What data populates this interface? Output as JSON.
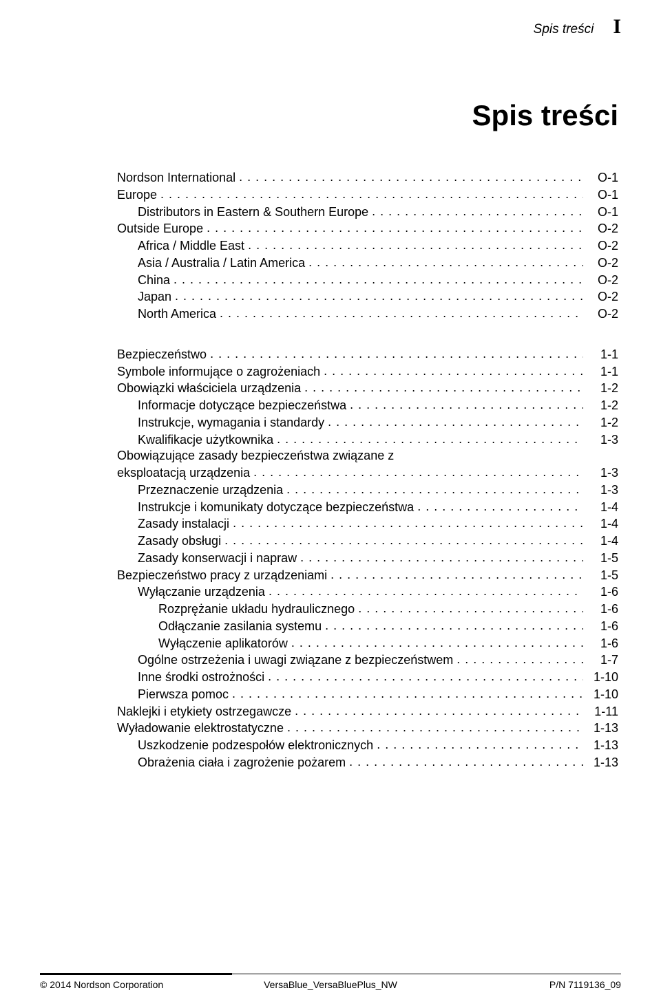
{
  "header": {
    "label": "Spis treści",
    "roman": "I"
  },
  "title": "Spis treści",
  "sections": [
    {
      "items": [
        {
          "indent": 0,
          "label": "Nordson International",
          "page": "O‑1"
        },
        {
          "indent": 0,
          "label": "Europe",
          "page": "O‑1"
        },
        {
          "indent": 1,
          "label": "Distributors in Eastern & Southern Europe",
          "page": "O‑1"
        },
        {
          "indent": 0,
          "label": "Outside Europe",
          "page": "O‑2"
        },
        {
          "indent": 1,
          "label": "Africa / Middle East",
          "page": "O‑2"
        },
        {
          "indent": 1,
          "label": "Asia / Australia / Latin America",
          "page": "O‑2"
        },
        {
          "indent": 1,
          "label": "China",
          "page": "O‑2"
        },
        {
          "indent": 1,
          "label": "Japan",
          "page": "O‑2"
        },
        {
          "indent": 1,
          "label": "North America",
          "page": "O‑2"
        }
      ]
    },
    {
      "items": [
        {
          "indent": 0,
          "label": "Bezpieczeństwo",
          "page": "1‑1"
        },
        {
          "indent": 0,
          "label": "Symbole informujące o zagrożeniach",
          "page": "1‑1"
        },
        {
          "indent": 0,
          "label": "Obowiązki właściciela urządzenia",
          "page": "1‑2"
        },
        {
          "indent": 1,
          "label": "Informacje dotyczące bezpieczeństwa",
          "page": "1‑2"
        },
        {
          "indent": 1,
          "label": "Instrukcje, wymagania i standardy",
          "page": "1‑2"
        },
        {
          "indent": 1,
          "label": "Kwalifikacje użytkownika",
          "page": "1‑3"
        },
        {
          "indent": 0,
          "label": "Obowiązujące zasady bezpieczeństwa związane z",
          "label2": "eksploatacją urządzenia",
          "page": "1‑3",
          "wrap": true
        },
        {
          "indent": 1,
          "label": "Przeznaczenie urządzenia",
          "page": "1‑3"
        },
        {
          "indent": 1,
          "label": "Instrukcje i komunikaty dotyczące bezpieczeństwa",
          "page": "1‑4"
        },
        {
          "indent": 1,
          "label": "Zasady instalacji",
          "page": "1‑4"
        },
        {
          "indent": 1,
          "label": "Zasady obsługi",
          "page": "1‑4"
        },
        {
          "indent": 1,
          "label": "Zasady konserwacji i napraw",
          "page": "1‑5"
        },
        {
          "indent": 0,
          "label": "Bezpieczeństwo pracy z urządzeniami",
          "page": "1‑5"
        },
        {
          "indent": 1,
          "label": "Wyłączanie urządzenia",
          "page": "1‑6"
        },
        {
          "indent": 2,
          "label": "Rozprężanie układu hydraulicznego",
          "page": "1‑6"
        },
        {
          "indent": 2,
          "label": "Odłączanie zasilania systemu",
          "page": "1‑6"
        },
        {
          "indent": 2,
          "label": "Wyłączenie aplikatorów",
          "page": "1‑6"
        },
        {
          "indent": 1,
          "label": "Ogólne ostrzeżenia i uwagi związane z bezpieczeństwem",
          "page": "1‑7"
        },
        {
          "indent": 1,
          "label": "Inne środki ostrożności",
          "page": "1‑10"
        },
        {
          "indent": 1,
          "label": "Pierwsza pomoc",
          "page": "1‑10"
        },
        {
          "indent": 0,
          "label": "Naklejki i etykiety ostrzegawcze",
          "page": "1‑11"
        },
        {
          "indent": 0,
          "label": "Wyładowanie elektrostatyczne",
          "page": "1‑13"
        },
        {
          "indent": 1,
          "label": "Uszkodzenie podzespołów elektronicznych",
          "page": "1‑13"
        },
        {
          "indent": 1,
          "label": "Obrażenia ciała i zagrożenie pożarem",
          "page": "1‑13"
        }
      ]
    }
  ],
  "footer": {
    "left": "© 2014 Nordson Corporation",
    "center": "VersaBlue_VersaBluePlus_NW",
    "right": "P/N 7119136_09"
  }
}
